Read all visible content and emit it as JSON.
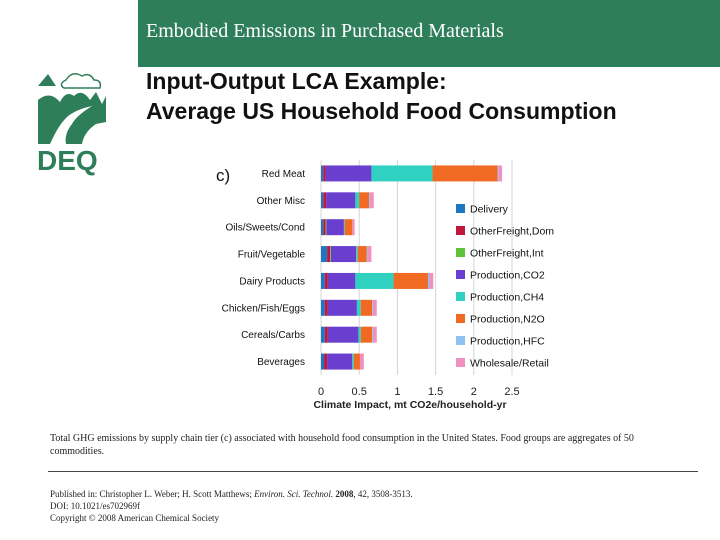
{
  "header": {
    "title": "Embodied Emissions in Purchased Materials"
  },
  "logo": {
    "text": "DEQ",
    "icon": "deq-landscape-logo"
  },
  "subtitle": {
    "line1": "Input-Output LCA Example:",
    "line2": "Average US Household Food Consumption"
  },
  "colors": {
    "header_bg": "#2e7e5a",
    "logo": "#2e7e5a",
    "Delivery": "#1f77c4",
    "OtherFreight,Dom": "#c0183a",
    "OtherFreight,Int": "#5cc33a",
    "Production,CO2": "#6a3fd0",
    "Production,CH4": "#2fd1c0",
    "Production,N2O": "#f06a24",
    "Production,HFC": "#8ec3f0",
    "Wholesale/Retail": "#f08fc0"
  },
  "chart_data": {
    "type": "bar",
    "orientation": "horizontal",
    "stacked": true,
    "panel_label": "c)",
    "xlabel": "Climate Impact, mt CO2e/household-yr",
    "xlim": [
      0,
      2.5
    ],
    "xticks": [
      "0",
      "0.5",
      "1",
      "1.5",
      "2",
      "2.5"
    ],
    "grid": true,
    "legend_position": "right",
    "categories": [
      "Red Meat",
      "Other Misc",
      "Oils/Sweets/Cond",
      "Fruit/Vegetable",
      "Dairy Products",
      "Chicken/Fish/Eggs",
      "Cereals/Carbs",
      "Beverages"
    ],
    "series": [
      {
        "name": "Delivery",
        "values": [
          0.03,
          0.03,
          0.03,
          0.08,
          0.05,
          0.05,
          0.05,
          0.04
        ]
      },
      {
        "name": "OtherFreight,Dom",
        "values": [
          0.03,
          0.04,
          0.03,
          0.04,
          0.04,
          0.04,
          0.04,
          0.04
        ]
      },
      {
        "name": "OtherFreight,Int",
        "values": [
          0.0,
          0.0,
          0.01,
          0.01,
          0.0,
          0.0,
          0.0,
          0.0
        ]
      },
      {
        "name": "Production,CO2",
        "values": [
          0.6,
          0.38,
          0.23,
          0.33,
          0.36,
          0.38,
          0.4,
          0.33
        ]
      },
      {
        "name": "Production,CH4",
        "values": [
          0.8,
          0.05,
          0.01,
          0.02,
          0.5,
          0.05,
          0.03,
          0.02
        ]
      },
      {
        "name": "Production,N2O",
        "values": [
          0.85,
          0.13,
          0.1,
          0.12,
          0.45,
          0.15,
          0.15,
          0.08
        ]
      },
      {
        "name": "Production,HFC",
        "values": [
          0.01,
          0.01,
          0.0,
          0.01,
          0.02,
          0.01,
          0.01,
          0.0
        ]
      },
      {
        "name": "Wholesale/Retail",
        "values": [
          0.05,
          0.05,
          0.03,
          0.05,
          0.05,
          0.05,
          0.05,
          0.05
        ]
      }
    ]
  },
  "caption": "Total GHG emissions by supply chain tier (c) associated with household food consumption in the United States. Food groups are aggregates of 50 commodities.",
  "citation": {
    "published_prefix": "Published in: Christopher L. Weber; H. Scott Matthews;",
    "journal": "Environ. Sci. Technol.",
    "year": "2008",
    "volume_pages": ", 42, 3508-3513.",
    "doi": "DOI: 10.1021/es702969f",
    "copyright": "Copyright © 2008 American Chemical Society"
  }
}
